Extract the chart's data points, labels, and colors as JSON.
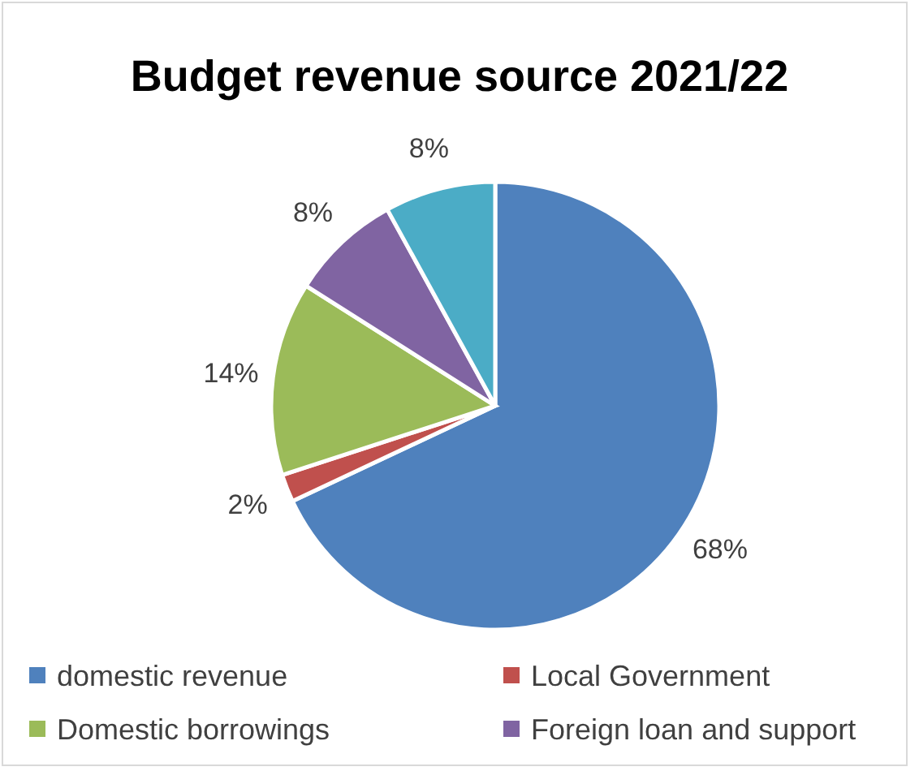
{
  "chart_data": {
    "type": "pie",
    "title": "Budget revenue source 2021/22",
    "categories": [
      "domestic revenue",
      "Local Government",
      "Domestic borrowings",
      "Foreign loan and support",
      null
    ],
    "values": [
      68,
      2,
      14,
      8,
      8
    ],
    "colors": [
      "#4f81bd",
      "#c0504d",
      "#9bbb59",
      "#8064a2",
      "#4bacc6"
    ],
    "value_labels": [
      "68%",
      "2%",
      "14%",
      "8%",
      "8%"
    ],
    "legend": "bottom"
  }
}
